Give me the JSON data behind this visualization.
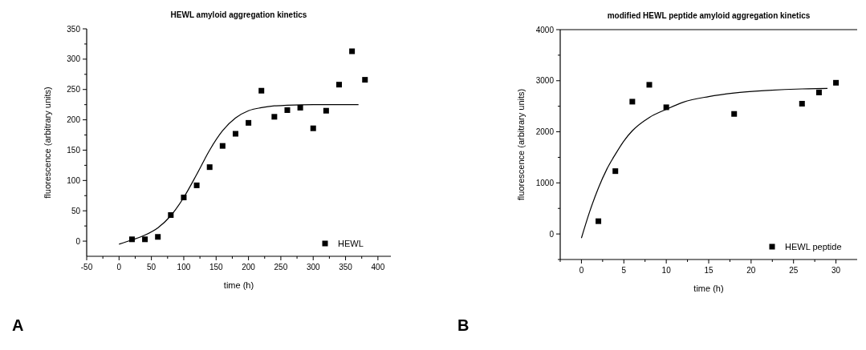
{
  "chart_data": [
    {
      "type": "scatter",
      "title": "HEWL amyloid aggregation kinetics",
      "xlabel": "time (h)",
      "ylabel": "fluorescence (arbitrary units)",
      "xlim": [
        -50,
        420
      ],
      "ylim": [
        -25,
        350
      ],
      "xticks": [
        -50,
        {
          "value": -25,
          "label": null
        },
        0,
        {
          "value": 25,
          "label": null
        },
        50,
        {
          "value": 75,
          "label": null
        },
        100,
        {
          "value": 125,
          "label": null
        },
        150,
        {
          "value": 175,
          "label": null
        },
        200,
        {
          "value": 225,
          "label": null
        },
        250,
        {
          "value": 275,
          "label": null
        },
        300,
        {
          "value": 325,
          "label": null
        },
        350,
        {
          "value": 375,
          "label": null
        },
        400
      ],
      "yticks": [
        0,
        {
          "value": 25,
          "label": null
        },
        50,
        {
          "value": 75,
          "label": null
        },
        100,
        {
          "value": 125,
          "label": null
        },
        150,
        {
          "value": 175,
          "label": null
        },
        200,
        {
          "value": 225,
          "label": null
        },
        250,
        {
          "value": 275,
          "label": null
        },
        300,
        {
          "value": 325,
          "label": null
        },
        350
      ],
      "legend": "bottom right",
      "grid": false,
      "annotations": [
        "A"
      ],
      "series": [
        {
          "name": "HEWL",
          "color": "#000000",
          "marker": "square",
          "x": [
            20,
            40,
            60,
            80,
            100,
            120,
            140,
            160,
            180,
            200,
            220,
            240,
            260,
            280,
            300,
            320,
            340,
            360,
            380
          ],
          "values": [
            3,
            3,
            7,
            43,
            72,
            92,
            122,
            157,
            177,
            195,
            248,
            205,
            216,
            220,
            186,
            215,
            258,
            313,
            266
          ]
        },
        {
          "type": "line",
          "color": "#000000",
          "marker": "none",
          "line_style": "solid",
          "x": [
            0,
            20,
            40,
            60,
            80,
            100,
            120,
            140,
            160,
            180,
            200,
            220,
            240,
            260,
            300,
            370
          ],
          "values": [
            -5,
            2,
            10,
            22,
            42,
            72,
            110,
            150,
            182,
            203,
            215,
            220,
            223,
            224,
            225,
            225
          ]
        }
      ]
    },
    {
      "type": "scatter",
      "title": "modified HEWL peptide amyloid aggregation kinetics",
      "xlabel": "time (h)",
      "ylabel": "fluorescence (arbitrary units)",
      "xlim": [
        -2.5,
        32.5
      ],
      "ylim": [
        -500,
        4000
      ],
      "xticks": [
        {
          "value": -2.5,
          "label": null
        },
        0,
        {
          "value": 2.5,
          "label": null
        },
        5,
        {
          "value": 7.5,
          "label": null
        },
        10,
        {
          "value": 12.5,
          "label": null
        },
        15,
        {
          "value": 17.5,
          "label": null
        },
        20,
        {
          "value": 22.5,
          "label": null
        },
        25,
        {
          "value": 27.5,
          "label": null
        },
        30
      ],
      "yticks": [
        {
          "value": -500,
          "label": null
        },
        0,
        {
          "value": 500,
          "label": null
        },
        1000,
        {
          "value": 1500,
          "label": null
        },
        2000,
        {
          "value": 2500,
          "label": null
        },
        3000,
        {
          "value": 3500,
          "label": null
        },
        4000
      ],
      "legend": "bottom right",
      "grid": false,
      "annotations": [
        "B"
      ],
      "series": [
        {
          "name": "HEWL peptide",
          "color": "#000000",
          "marker": "square",
          "x": [
            2,
            4,
            6,
            8,
            10,
            18,
            26,
            28,
            30
          ],
          "values": [
            250,
            1230,
            2590,
            2920,
            2480,
            2350,
            2550,
            2770,
            2960
          ]
        },
        {
          "type": "line",
          "color": "#000000",
          "marker": "none",
          "line_style": "solid",
          "x": [
            0,
            1,
            2,
            3,
            4,
            5,
            6,
            8,
            10,
            12,
            15,
            18,
            22,
            26,
            29
          ],
          "values": [
            -80,
            450,
            900,
            1270,
            1560,
            1820,
            2020,
            2280,
            2440,
            2580,
            2690,
            2760,
            2810,
            2840,
            2850
          ]
        }
      ]
    }
  ]
}
